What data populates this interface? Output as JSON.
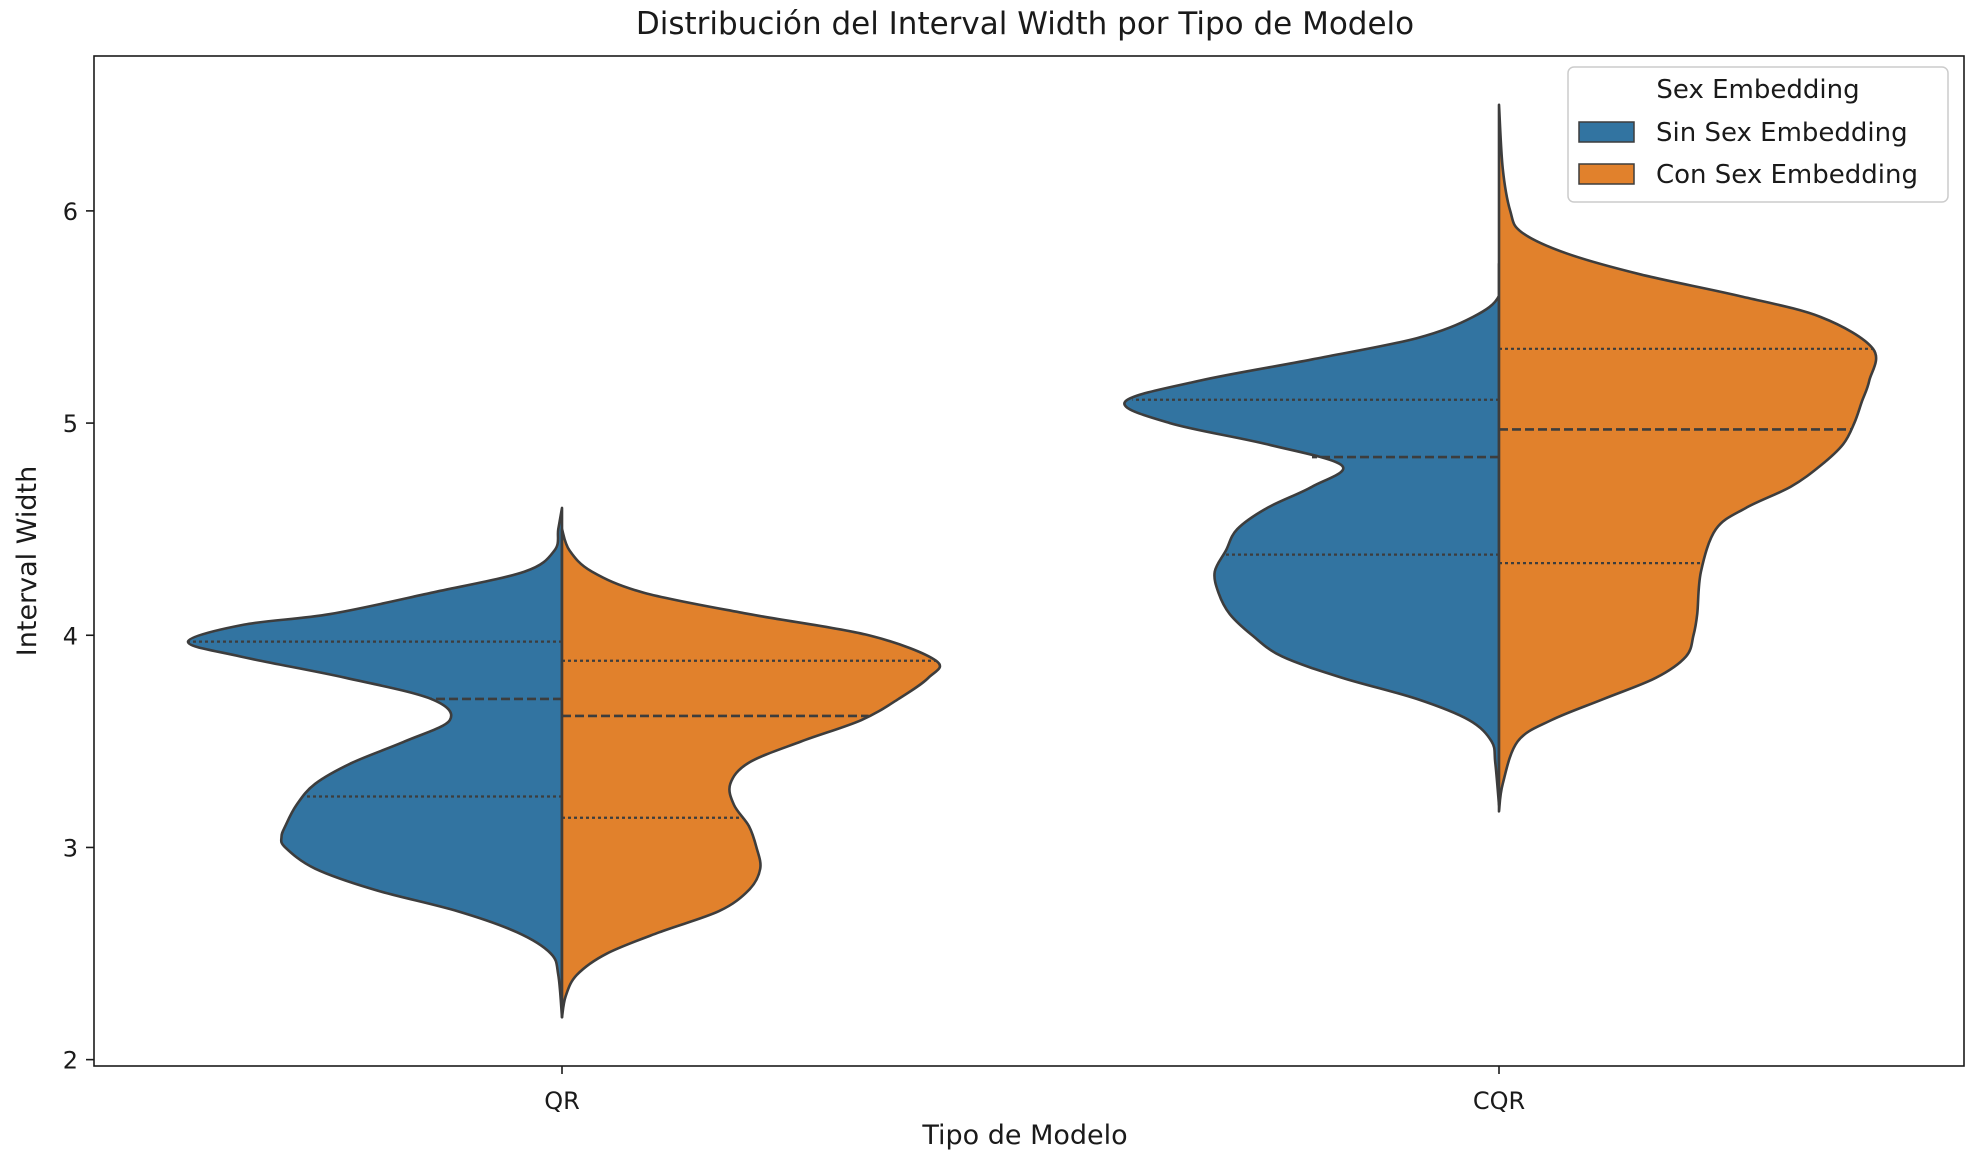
{
  "chart_data": {
    "type": "violin",
    "title": "Distribución del Interval Width por Tipo de Modelo",
    "xlabel": "Tipo de Modelo",
    "ylabel": "Interval Width",
    "categories": [
      "QR",
      "CQR"
    ],
    "ylim": [
      1.97,
      6.73
    ],
    "yticks": [
      2,
      3,
      4,
      5,
      6
    ],
    "grid": false,
    "legend": {
      "title": "Sex Embedding",
      "placement": "top-right",
      "entries": [
        "Sin Sex Embedding",
        "Con Sex Embedding"
      ]
    },
    "colors": {
      "Sin Sex Embedding": "#3274a1",
      "Con Sex Embedding": "#e1812c",
      "outline": "#3d3d3d"
    },
    "split": true,
    "inner": "quartile",
    "series": [
      {
        "name": "Sin Sex Embedding",
        "violins": [
          {
            "category": "QR",
            "quartiles": [
              3.24,
              3.7,
              3.97
            ],
            "profile": [
              [
                2.2,
                0.0
              ],
              [
                2.4,
                0.01
              ],
              [
                2.5,
                0.03
              ],
              [
                2.6,
                0.12
              ],
              [
                2.7,
                0.28
              ],
              [
                2.8,
                0.5
              ],
              [
                2.9,
                0.66
              ],
              [
                3.0,
                0.74
              ],
              [
                3.05,
                0.75
              ],
              [
                3.1,
                0.74
              ],
              [
                3.2,
                0.71
              ],
              [
                3.3,
                0.66
              ],
              [
                3.4,
                0.56
              ],
              [
                3.5,
                0.42
              ],
              [
                3.6,
                0.3
              ],
              [
                3.7,
                0.35
              ],
              [
                3.8,
                0.58
              ],
              [
                3.9,
                0.86
              ],
              [
                3.97,
                1.0
              ],
              [
                4.05,
                0.85
              ],
              [
                4.1,
                0.62
              ],
              [
                4.2,
                0.35
              ],
              [
                4.3,
                0.1
              ],
              [
                4.4,
                0.02
              ],
              [
                4.5,
                0.01
              ],
              [
                4.6,
                0.0
              ]
            ]
          },
          {
            "category": "CQR",
            "quartiles": [
              4.38,
              4.84,
              5.11
            ],
            "profile": [
              [
                3.2,
                0.0
              ],
              [
                3.4,
                0.01
              ],
              [
                3.5,
                0.02
              ],
              [
                3.6,
                0.08
              ],
              [
                3.7,
                0.22
              ],
              [
                3.8,
                0.42
              ],
              [
                3.9,
                0.58
              ],
              [
                4.0,
                0.66
              ],
              [
                4.1,
                0.72
              ],
              [
                4.2,
                0.75
              ],
              [
                4.3,
                0.76
              ],
              [
                4.4,
                0.73
              ],
              [
                4.5,
                0.7
              ],
              [
                4.6,
                0.62
              ],
              [
                4.7,
                0.5
              ],
              [
                4.8,
                0.42
              ],
              [
                4.9,
                0.62
              ],
              [
                5.0,
                0.88
              ],
              [
                5.1,
                1.0
              ],
              [
                5.2,
                0.8
              ],
              [
                5.3,
                0.5
              ],
              [
                5.4,
                0.22
              ],
              [
                5.5,
                0.07
              ],
              [
                5.6,
                0.0
              ],
              [
                5.75,
                0.0
              ]
            ]
          }
        ]
      },
      {
        "name": "Con Sex Embedding",
        "violins": [
          {
            "category": "QR",
            "quartiles": [
              3.14,
              3.62,
              3.88
            ],
            "profile": [
              [
                2.2,
                0.0
              ],
              [
                2.3,
                0.01
              ],
              [
                2.4,
                0.04
              ],
              [
                2.5,
                0.12
              ],
              [
                2.6,
                0.26
              ],
              [
                2.7,
                0.42
              ],
              [
                2.8,
                0.5
              ],
              [
                2.9,
                0.53
              ],
              [
                3.0,
                0.52
              ],
              [
                3.1,
                0.5
              ],
              [
                3.2,
                0.46
              ],
              [
                3.3,
                0.45
              ],
              [
                3.4,
                0.5
              ],
              [
                3.5,
                0.64
              ],
              [
                3.6,
                0.8
              ],
              [
                3.7,
                0.9
              ],
              [
                3.8,
                0.98
              ],
              [
                3.88,
                1.0
              ],
              [
                4.0,
                0.82
              ],
              [
                4.1,
                0.5
              ],
              [
                4.2,
                0.22
              ],
              [
                4.3,
                0.08
              ],
              [
                4.4,
                0.02
              ],
              [
                4.5,
                0.0
              ]
            ]
          },
          {
            "category": "CQR",
            "quartiles": [
              4.34,
              4.97,
              5.35
            ],
            "profile": [
              [
                3.17,
                0.0
              ],
              [
                3.3,
                0.01
              ],
              [
                3.5,
                0.05
              ],
              [
                3.6,
                0.14
              ],
              [
                3.7,
                0.28
              ],
              [
                3.8,
                0.42
              ],
              [
                3.9,
                0.5
              ],
              [
                4.0,
                0.52
              ],
              [
                4.1,
                0.53
              ],
              [
                4.3,
                0.54
              ],
              [
                4.5,
                0.58
              ],
              [
                4.6,
                0.66
              ],
              [
                4.7,
                0.78
              ],
              [
                4.8,
                0.86
              ],
              [
                4.9,
                0.92
              ],
              [
                5.0,
                0.95
              ],
              [
                5.1,
                0.97
              ],
              [
                5.2,
                0.99
              ],
              [
                5.35,
                1.0
              ],
              [
                5.5,
                0.86
              ],
              [
                5.6,
                0.64
              ],
              [
                5.7,
                0.38
              ],
              [
                5.8,
                0.18
              ],
              [
                5.9,
                0.06
              ],
              [
                6.0,
                0.03
              ],
              [
                6.2,
                0.01
              ],
              [
                6.5,
                0.0
              ]
            ]
          }
        ]
      }
    ]
  }
}
